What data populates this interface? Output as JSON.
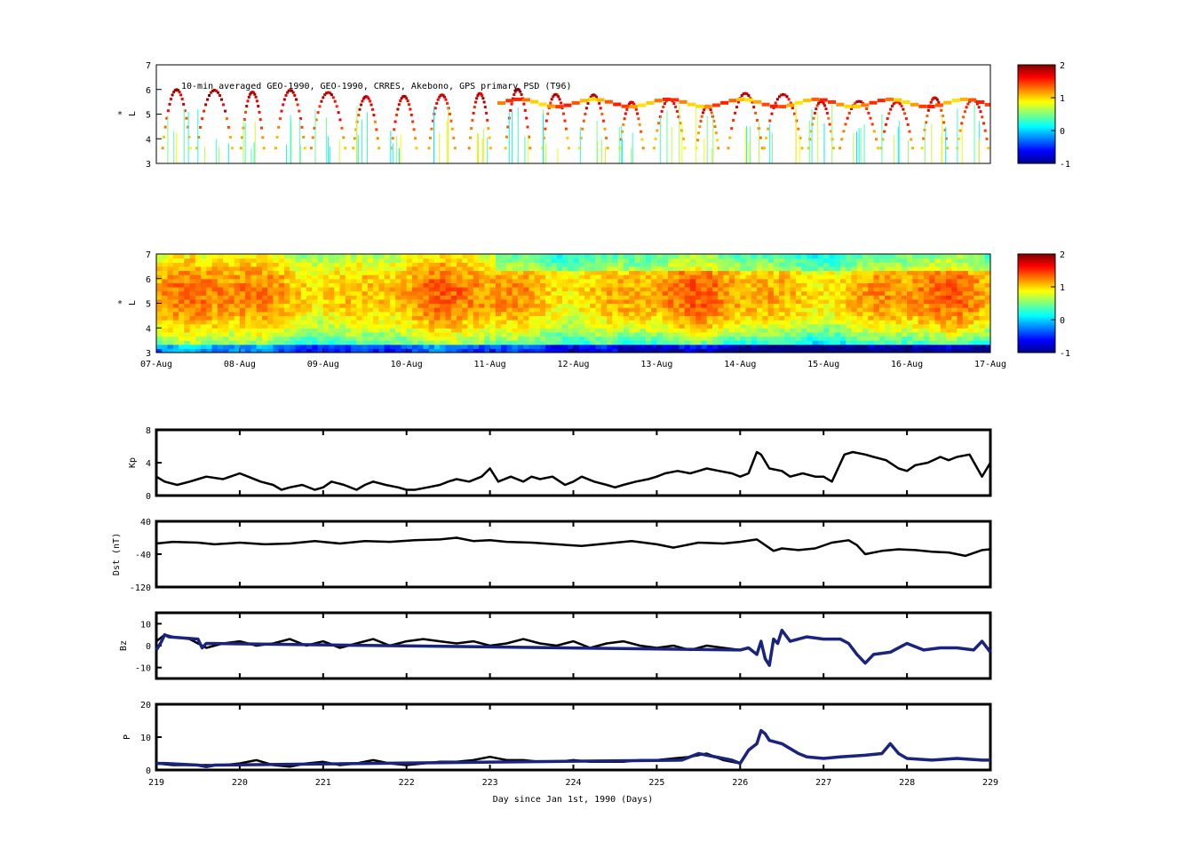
{
  "chart_data": [
    {
      "type": "heatmap",
      "panel": "psd_observations",
      "title": "10-min averaged GEO-1990, GEO-1990, CRRES, Akebono, GPS  primary PSD (T96)",
      "ylabel_top": "*",
      "ylabel": "L",
      "ylim": [
        3,
        7
      ],
      "yticks": [
        "3",
        "4",
        "5",
        "6",
        "7"
      ],
      "colorbar": {
        "range": [
          -1,
          2
        ],
        "ticks": [
          "-1",
          "0",
          "1",
          "2"
        ],
        "colormap": "jet"
      }
    },
    {
      "type": "heatmap",
      "panel": "psd_reanalysis",
      "ylabel_top": "*",
      "ylabel": "L",
      "ylim": [
        3,
        7
      ],
      "yticks": [
        "3",
        "4",
        "5",
        "6",
        "7"
      ],
      "xticks": [
        "07-Aug",
        "08-Aug",
        "09-Aug",
        "10-Aug",
        "11-Aug",
        "12-Aug",
        "13-Aug",
        "14-Aug",
        "15-Aug",
        "16-Aug",
        "17-Aug"
      ],
      "colorbar": {
        "range": [
          -1,
          2
        ],
        "ticks": [
          "-1",
          "0",
          "1",
          "2"
        ],
        "colormap": "jet"
      }
    },
    {
      "type": "line",
      "panel": "kp",
      "ylabel": "Kp",
      "ylim": [
        0,
        8
      ],
      "yticks": [
        "0",
        "4",
        "8"
      ],
      "series": [
        {
          "color": "#000000",
          "x": [
            219.0,
            219.1,
            219.25,
            219.4,
            219.5,
            219.6,
            219.8,
            220.0,
            220.1,
            220.25,
            220.4,
            220.5,
            220.6,
            220.75,
            220.9,
            221.0,
            221.1,
            221.25,
            221.4,
            221.5,
            221.6,
            221.75,
            221.9,
            222.0,
            222.1,
            222.25,
            222.4,
            222.5,
            222.6,
            222.75,
            222.9,
            223.0,
            223.1,
            223.25,
            223.4,
            223.5,
            223.6,
            223.75,
            223.9,
            224.0,
            224.1,
            224.25,
            224.4,
            224.5,
            224.6,
            224.75,
            224.9,
            225.0,
            225.1,
            225.25,
            225.4,
            225.5,
            225.6,
            225.75,
            225.9,
            226.0,
            226.1,
            226.2,
            226.25,
            226.35,
            226.5,
            226.6,
            226.75,
            226.9,
            227.0,
            227.1,
            227.25,
            227.35,
            227.5,
            227.6,
            227.75,
            227.9,
            228.0,
            228.1,
            228.25,
            228.4,
            228.5,
            228.6,
            228.75,
            228.9,
            229.0
          ],
          "y": [
            2.3,
            1.7,
            1.3,
            1.7,
            2.0,
            2.3,
            2.0,
            2.7,
            2.3,
            1.7,
            1.3,
            0.7,
            1.0,
            1.3,
            0.7,
            1.0,
            1.7,
            1.3,
            0.7,
            1.3,
            1.7,
            1.3,
            1.0,
            0.7,
            0.7,
            1.0,
            1.3,
            1.7,
            2.0,
            1.7,
            2.3,
            3.3,
            1.7,
            2.3,
            1.7,
            2.3,
            2.0,
            2.3,
            1.3,
            1.7,
            2.3,
            1.7,
            1.3,
            1.0,
            1.3,
            1.7,
            2.0,
            2.3,
            2.7,
            3.0,
            2.7,
            3.0,
            3.3,
            3.0,
            2.7,
            2.3,
            2.7,
            5.3,
            5.0,
            3.3,
            3.0,
            2.3,
            2.7,
            2.3,
            2.3,
            1.7,
            5.0,
            5.3,
            5.0,
            4.7,
            4.3,
            3.3,
            3.0,
            3.7,
            4.0,
            4.7,
            4.3,
            4.7,
            5.0,
            2.3,
            4.0
          ]
        }
      ]
    },
    {
      "type": "line",
      "panel": "dst",
      "ylabel": "Dst (nT)",
      "ylim": [
        -120,
        40
      ],
      "yticks": [
        "-120",
        "-40",
        "40"
      ],
      "series": [
        {
          "color": "#000000",
          "x": [
            219.0,
            219.2,
            219.5,
            219.7,
            220.0,
            220.3,
            220.6,
            220.9,
            221.2,
            221.5,
            221.8,
            222.1,
            222.4,
            222.6,
            222.8,
            223.0,
            223.2,
            223.5,
            223.8,
            224.1,
            224.4,
            224.7,
            225.0,
            225.2,
            225.5,
            225.8,
            226.0,
            226.2,
            226.3,
            226.4,
            226.5,
            226.7,
            226.9,
            227.1,
            227.3,
            227.4,
            227.5,
            227.7,
            227.9,
            228.1,
            228.3,
            228.5,
            228.7,
            228.9,
            229.0
          ],
          "y": [
            -14,
            -10,
            -12,
            -16,
            -12,
            -16,
            -14,
            -8,
            -14,
            -8,
            -10,
            -6,
            -4,
            0,
            -8,
            -6,
            -10,
            -12,
            -16,
            -20,
            -14,
            -8,
            -16,
            -24,
            -12,
            -14,
            -10,
            -4,
            -18,
            -32,
            -26,
            -30,
            -26,
            -12,
            -6,
            -18,
            -40,
            -32,
            -28,
            -30,
            -34,
            -36,
            -44,
            -30,
            -28
          ]
        }
      ]
    },
    {
      "type": "line",
      "panel": "bz",
      "ylabel": "Bz",
      "ylim": [
        -15,
        15
      ],
      "yticks": [
        "-10",
        "0",
        "10"
      ],
      "series": [
        {
          "color": "#000000",
          "x": [
            219.0,
            219.1,
            219.2,
            219.4,
            219.6,
            219.8,
            220.0,
            220.2,
            220.4,
            220.6,
            220.8,
            221.0,
            221.2,
            221.4,
            221.6,
            221.8,
            222.0,
            222.2,
            222.4,
            222.6,
            222.8,
            223.0,
            223.2,
            223.4,
            223.6,
            223.8,
            224.0,
            224.2,
            224.4,
            224.6,
            224.8,
            225.0,
            225.2,
            225.4,
            225.6,
            225.8,
            226.0
          ],
          "y": [
            2,
            5,
            4,
            3,
            -1,
            1,
            2,
            0,
            1,
            3,
            0,
            2,
            -1,
            1,
            3,
            0,
            2,
            3,
            2,
            1,
            2,
            0,
            1,
            3,
            1,
            0,
            2,
            -1,
            1,
            2,
            0,
            -1,
            0,
            -2,
            0,
            -1,
            -2
          ]
        },
        {
          "color": "#1a237e",
          "x": [
            219.0,
            219.05,
            219.1,
            219.15,
            219.5,
            219.55,
            219.6,
            226.0,
            226.1,
            226.2,
            226.25,
            226.3,
            226.35,
            226.4,
            226.45,
            226.5,
            226.6,
            226.8,
            227.0,
            227.2,
            227.3,
            227.4,
            227.5,
            227.6,
            227.8,
            228.0,
            228.2,
            228.4,
            228.6,
            228.8,
            228.9,
            229.0
          ],
          "y": [
            -2,
            1,
            5,
            4,
            3,
            -1,
            1,
            -2,
            -1,
            -4,
            2,
            -6,
            -9,
            3,
            1,
            7,
            2,
            4,
            3,
            3,
            1,
            -4,
            -8,
            -4,
            -3,
            1,
            -2,
            -1,
            -1,
            -2,
            2,
            -3
          ]
        }
      ]
    },
    {
      "type": "line",
      "panel": "p",
      "ylabel": "P",
      "ylim": [
        0,
        20
      ],
      "yticks": [
        "0",
        "10",
        "20"
      ],
      "xticks": [
        "219",
        "220",
        "221",
        "222",
        "223",
        "224",
        "225",
        "226",
        "227",
        "228",
        "229"
      ],
      "xlabel": "Day since Jan 1st, 1990 (Days)",
      "series": [
        {
          "color": "#000000",
          "x": [
            219.0,
            219.2,
            219.5,
            219.8,
            220.0,
            220.2,
            220.4,
            220.6,
            220.8,
            221.0,
            221.2,
            221.4,
            221.6,
            221.8,
            222.0,
            222.2,
            222.4,
            222.6,
            222.8,
            223.0,
            223.2,
            223.4,
            223.6,
            223.8,
            224.0,
            224.2,
            224.4,
            224.6,
            224.8,
            225.0,
            225.2,
            225.4,
            225.6,
            225.8,
            226.0
          ],
          "y": [
            2,
            1.5,
            1.5,
            1.5,
            2,
            3,
            1.5,
            1,
            2,
            2.5,
            1.5,
            2,
            3,
            2,
            1.5,
            2,
            2.5,
            2.5,
            3,
            4,
            3,
            3,
            2.5,
            2.5,
            3,
            2.5,
            2.5,
            2.5,
            3,
            3,
            3.5,
            4,
            5,
            3,
            2
          ]
        },
        {
          "color": "#1a237e",
          "x": [
            219.0,
            219.1,
            219.5,
            219.6,
            219.7,
            225.3,
            225.5,
            225.9,
            226.0,
            226.1,
            226.2,
            226.25,
            226.3,
            226.35,
            226.5,
            226.7,
            226.8,
            227.0,
            227.2,
            227.5,
            227.7,
            227.8,
            227.9,
            228.0,
            228.3,
            228.6,
            228.9,
            229.0
          ],
          "y": [
            2,
            2,
            1.5,
            1,
            1.5,
            3,
            5,
            3,
            2,
            6,
            8,
            12,
            11,
            9,
            8,
            5,
            4,
            3.5,
            4,
            4.5,
            5,
            8,
            5,
            3.5,
            3,
            3.5,
            3,
            3
          ]
        }
      ]
    }
  ]
}
